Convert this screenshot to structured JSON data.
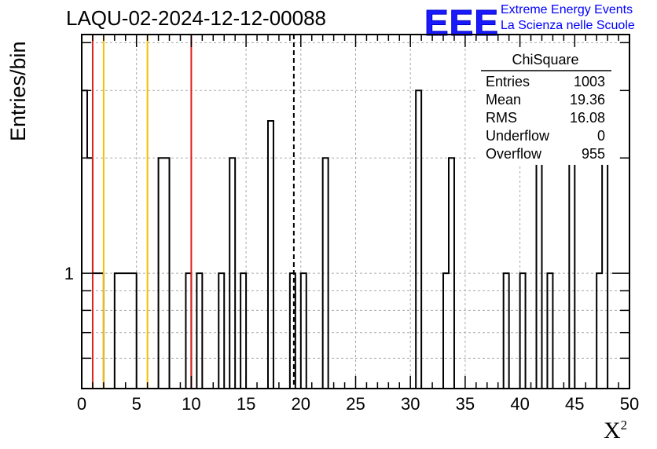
{
  "header": {
    "title": "LAQU-02-2024-12-12-00088",
    "logo_text": "EEE",
    "tagline_1": "Extreme Energy Events",
    "tagline_2": "La Scienza nelle Scuole"
  },
  "chart_data": {
    "type": "bar",
    "subtype": "histogram-step",
    "ylabel": "Entries/bin",
    "xlabel_base": "X",
    "xlabel_sup": "2",
    "xlim": [
      0,
      50
    ],
    "ylim_log": [
      0.5,
      4.2
    ],
    "log_y": true,
    "grid": true,
    "bin_width": 0.5,
    "x_ticks": [
      "0",
      "5",
      "10",
      "15",
      "20",
      "25",
      "30",
      "35",
      "40",
      "45",
      "50"
    ],
    "y_ticks": [
      "1"
    ],
    "nonzero_bins": [
      {
        "x": 0.0,
        "value": 3
      },
      {
        "x": 0.5,
        "value": 2
      },
      {
        "x": 1.0,
        "value": 1
      },
      {
        "x": 1.5,
        "value": 1
      },
      {
        "x": 3.0,
        "value": 1
      },
      {
        "x": 3.5,
        "value": 1
      },
      {
        "x": 4.0,
        "value": 1
      },
      {
        "x": 4.5,
        "value": 1
      },
      {
        "x": 7.0,
        "value": 2
      },
      {
        "x": 7.5,
        "value": 2
      },
      {
        "x": 9.5,
        "value": 1
      },
      {
        "x": 10.5,
        "value": 1
      },
      {
        "x": 12.5,
        "value": 1
      },
      {
        "x": 13.5,
        "value": 2
      },
      {
        "x": 14.5,
        "value": 1
      },
      {
        "x": 17.0,
        "value": 2.5
      },
      {
        "x": 19.0,
        "value": 1
      },
      {
        "x": 20.0,
        "value": 1
      },
      {
        "x": 22.0,
        "value": 2
      },
      {
        "x": 30.5,
        "value": 3
      },
      {
        "x": 33.0,
        "value": 1
      },
      {
        "x": 33.5,
        "value": 2
      },
      {
        "x": 38.5,
        "value": 1
      },
      {
        "x": 40.0,
        "value": 1
      },
      {
        "x": 41.5,
        "value": 2
      },
      {
        "x": 42.5,
        "value": 1
      },
      {
        "x": 44.5,
        "value": 2
      },
      {
        "x": 47.0,
        "value": 1
      },
      {
        "x": 47.5,
        "value": 2
      }
    ],
    "reference_lines": [
      {
        "x": 1,
        "color": "#dd2222",
        "style": "solid"
      },
      {
        "x": 2,
        "color": "#f5c000",
        "style": "solid"
      },
      {
        "x": 6,
        "color": "#f5c000",
        "style": "solid"
      },
      {
        "x": 10,
        "color": "#dd2222",
        "style": "solid"
      },
      {
        "x": 19.36,
        "color": "#000000",
        "style": "dashed"
      }
    ],
    "stats_box": {
      "title": "ChiSquare",
      "rows": [
        {
          "label": "Entries",
          "value": "1003"
        },
        {
          "label": "Mean",
          "value": "19.36"
        },
        {
          "label": "RMS",
          "value": "16.08"
        },
        {
          "label": "Underflow",
          "value": "0"
        },
        {
          "label": "Overflow",
          "value": "955"
        }
      ]
    }
  }
}
